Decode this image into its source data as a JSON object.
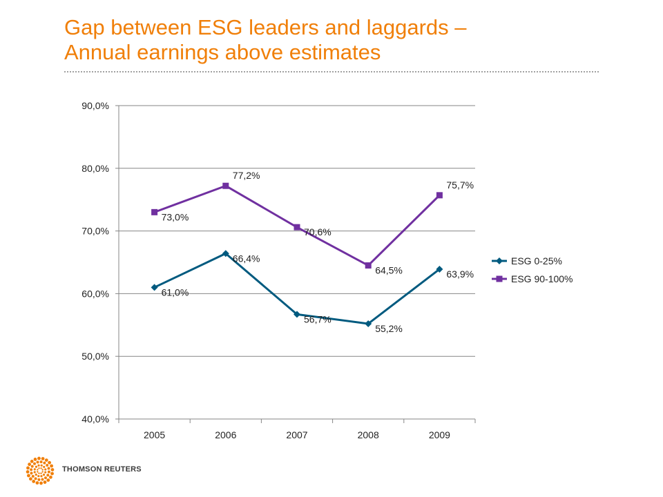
{
  "title_lines": [
    "Gap between ESG leaders and laggards –",
    "Annual earnings above estimates"
  ],
  "colors": {
    "title": "#f07f09",
    "esg_low": "#005a7f",
    "esg_high": "#7030a0",
    "logo": "#f07f09"
  },
  "logo": {
    "text": "THOMSON REUTERS"
  },
  "chart_data": {
    "type": "line",
    "categories": [
      "2005",
      "2006",
      "2007",
      "2008",
      "2009"
    ],
    "series": [
      {
        "name": "ESG 0-25%",
        "marker": "diamond",
        "color": "#005a7f",
        "values": [
          61.0,
          66.4,
          56.7,
          55.2,
          63.9
        ],
        "labels": [
          "61,0%",
          "66,4%",
          "56,7%",
          "55,2%",
          "63,9%"
        ]
      },
      {
        "name": "ESG 90-100%",
        "marker": "square",
        "color": "#7030a0",
        "values": [
          73.0,
          77.2,
          70.6,
          64.5,
          75.7
        ],
        "labels": [
          "73,0%",
          "77,2%",
          "70,6%",
          "64,5%",
          "75,7%"
        ]
      }
    ],
    "ylim": [
      40,
      90
    ],
    "yticks": [
      40,
      50,
      60,
      70,
      80,
      90
    ],
    "ytick_labels": [
      "40,0%",
      "50,0%",
      "60,0%",
      "70,0%",
      "80,0%",
      "90,0%"
    ],
    "grid": true,
    "legend_position": "right"
  }
}
